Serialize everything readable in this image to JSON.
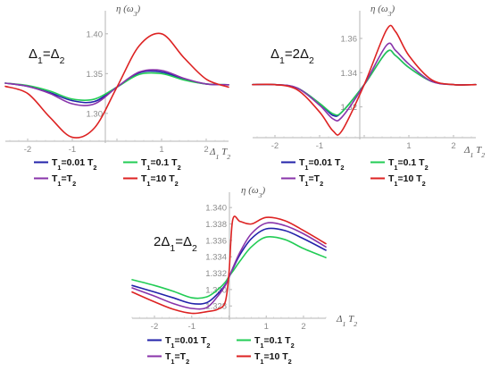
{
  "series_colors": [
    "#2222aa",
    "#22cc55",
    "#8833aa",
    "#dd2222"
  ],
  "chart_data": [
    {
      "type": "line",
      "panel_label": "Δ₁=Δ₂",
      "xlabel": "Δ₁ T₂",
      "ylabel": "η (ω₃)",
      "xlim": [
        -2.5,
        2.5
      ],
      "ylim": [
        1.265,
        1.42
      ],
      "xticks": [
        -2,
        -1,
        0,
        1,
        2
      ],
      "xtick_labels": [
        "-2",
        "-1",
        "",
        "1",
        "2"
      ],
      "yticks": [
        1.3,
        1.35,
        1.4
      ],
      "ytick_labels": [
        "1.30",
        "1.35",
        "1.40"
      ],
      "x": [
        -2.5,
        -2.0,
        -1.5,
        -1.0,
        -0.5,
        0.0,
        0.5,
        1.0,
        1.5,
        2.0,
        2.5
      ],
      "series": [
        {
          "name": "T₁=0.01 T₂",
          "values": [
            1.338,
            1.334,
            1.326,
            1.316,
            1.315,
            1.333,
            1.351,
            1.352,
            1.343,
            1.337,
            1.336
          ]
        },
        {
          "name": "T₁=0.1 T₂",
          "values": [
            1.338,
            1.335,
            1.328,
            1.318,
            1.318,
            1.333,
            1.349,
            1.35,
            1.342,
            1.337,
            1.336
          ]
        },
        {
          "name": "T₁=T₂",
          "values": [
            1.338,
            1.334,
            1.325,
            1.312,
            1.312,
            1.333,
            1.352,
            1.354,
            1.344,
            1.337,
            1.336
          ]
        },
        {
          "name": "T₁=10 T₂",
          "values": [
            1.334,
            1.325,
            1.295,
            1.27,
            1.282,
            1.333,
            1.385,
            1.4,
            1.37,
            1.343,
            1.333
          ]
        }
      ]
    },
    {
      "type": "line",
      "panel_label": "Δ₁=2Δ₂",
      "xlabel": "Δ₁ T₂",
      "ylabel": "η (ω₃)",
      "xlim": [
        -2.5,
        2.5
      ],
      "ylim": [
        1.302,
        1.372
      ],
      "xticks": [
        -2,
        -1,
        0,
        1,
        2
      ],
      "xtick_labels": [
        "-2",
        "-1",
        "",
        "1",
        "2"
      ],
      "yticks": [
        1.32,
        1.34,
        1.36
      ],
      "ytick_labels": [
        "1.32",
        "1.34",
        "1.36"
      ],
      "x": [
        -2.5,
        -2.0,
        -1.5,
        -1.0,
        -0.7,
        -0.5,
        0.0,
        0.5,
        0.7,
        1.0,
        1.5,
        2.0,
        2.5
      ],
      "series": [
        {
          "name": "T₁=0.01 T₂",
          "values": [
            1.333,
            1.333,
            1.331,
            1.322,
            1.315,
            1.317,
            1.333,
            1.352,
            1.35,
            1.343,
            1.335,
            1.333,
            1.333
          ]
        },
        {
          "name": "T₁=0.1 T₂",
          "values": [
            1.333,
            1.333,
            1.331,
            1.322,
            1.316,
            1.317,
            1.333,
            1.352,
            1.35,
            1.343,
            1.335,
            1.333,
            1.333
          ]
        },
        {
          "name": "T₁=T₂",
          "values": [
            1.333,
            1.333,
            1.331,
            1.321,
            1.313,
            1.314,
            1.333,
            1.356,
            1.353,
            1.345,
            1.335,
            1.333,
            1.333
          ]
        },
        {
          "name": "T₁=10 T₂",
          "values": [
            1.333,
            1.333,
            1.33,
            1.317,
            1.306,
            1.306,
            1.333,
            1.365,
            1.364,
            1.35,
            1.336,
            1.333,
            1.333
          ]
        }
      ]
    },
    {
      "type": "line",
      "panel_label": "2Δ₁=Δ₂",
      "xlabel": "Δ₁ T₂",
      "ylabel": "η (ω₃)",
      "xlim": [
        -2.6,
        2.6
      ],
      "ylim": [
        1.3265,
        1.341
      ],
      "xticks": [
        -2,
        -1,
        0,
        1,
        2
      ],
      "xtick_labels": [
        "-2",
        "-1",
        "",
        "1",
        "2"
      ],
      "yticks": [
        1.328,
        1.33,
        1.332,
        1.334,
        1.336,
        1.338,
        1.34
      ],
      "ytick_labels": [
        "1.328",
        "1.330",
        "1.332",
        "1.334",
        "1.336",
        "1.338",
        "1.340"
      ],
      "x": [
        -2.6,
        -2.0,
        -1.5,
        -1.0,
        -0.6,
        -0.3,
        -0.1,
        0.0,
        0.1,
        0.3,
        0.6,
        1.0,
        1.5,
        2.0,
        2.6
      ],
      "series": [
        {
          "name": "T₁=0.01 T₂",
          "values": [
            1.3305,
            1.3297,
            1.329,
            1.3283,
            1.3284,
            1.3295,
            1.3306,
            1.3315,
            1.3325,
            1.3343,
            1.3362,
            1.3374,
            1.3372,
            1.3362,
            1.3348
          ]
        },
        {
          "name": "T₁=0.1 T₂",
          "values": [
            1.3312,
            1.3305,
            1.3298,
            1.329,
            1.3291,
            1.33,
            1.3309,
            1.3316,
            1.3322,
            1.3335,
            1.3352,
            1.3364,
            1.3361,
            1.335,
            1.3339
          ]
        },
        {
          "name": "T₁=T₂",
          "values": [
            1.3302,
            1.3292,
            1.3283,
            1.3277,
            1.3278,
            1.3292,
            1.3305,
            1.3315,
            1.3326,
            1.3346,
            1.3368,
            1.3381,
            1.3378,
            1.3368,
            1.3352
          ]
        },
        {
          "name": "T₁=10 T₂",
          "values": [
            1.3297,
            1.3285,
            1.3276,
            1.3271,
            1.3273,
            1.3276,
            1.3285,
            1.332,
            1.3385,
            1.3383,
            1.338,
            1.3388,
            1.3384,
            1.3372,
            1.3356
          ]
        }
      ]
    }
  ]
}
